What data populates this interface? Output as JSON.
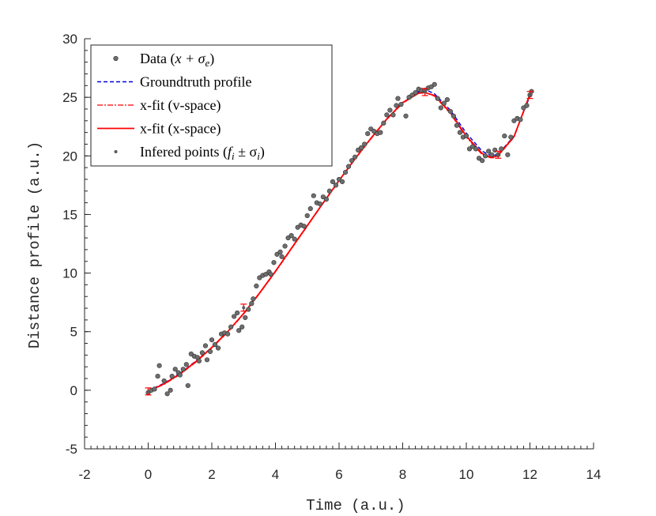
{
  "chart_data": {
    "type": "scatter",
    "title": "",
    "xlabel": "Time (a.u.)",
    "ylabel": "Distance profile (a.u.)",
    "xlim": [
      -2,
      14
    ],
    "ylim": [
      -5,
      30
    ],
    "xticks": [
      -2,
      0,
      2,
      4,
      6,
      8,
      10,
      12,
      14
    ],
    "yticks": [
      -5,
      0,
      5,
      10,
      15,
      20,
      25,
      30
    ],
    "xtick_labels": [
      "-2",
      "0",
      "2",
      "4",
      "6",
      "8",
      "10",
      "12",
      "14"
    ],
    "ytick_labels": [
      "-5",
      "0",
      "5",
      "10",
      "15",
      "20",
      "25",
      "30"
    ],
    "grid": false,
    "legend_position": "top-left",
    "legend": [
      {
        "key": "data",
        "text": "Data (",
        "math": "x + σ",
        "sub": "e",
        "suffix": ")"
      },
      {
        "key": "groundtruth",
        "text": "Groundtruth profile",
        "math": "",
        "sub": "",
        "suffix": ""
      },
      {
        "key": "vfit",
        "text": "x-fit (v-space)",
        "math": "",
        "sub": "",
        "suffix": ""
      },
      {
        "key": "xfit",
        "text": "x-fit (x-space)",
        "math": "",
        "sub": "",
        "suffix": ""
      },
      {
        "key": "inferred",
        "text": "Infered points (",
        "math": "f",
        "sub": "i",
        "suffix": " ± σ",
        "sub2": "i",
        "suffix2": ")"
      }
    ],
    "colors": {
      "data": "#6e6e6e",
      "groundtruth": "#0000dd",
      "vfit": "#ff0000",
      "xfit": "#ff0000",
      "inferred": "#5a5a5a",
      "axis": "#262626"
    },
    "series": [
      {
        "key": "data",
        "marker": "circle",
        "points": [
          [
            0.0,
            -0.2
          ],
          [
            0.1,
            0.0
          ],
          [
            0.2,
            0.1
          ],
          [
            0.3,
            1.2
          ],
          [
            0.35,
            2.1
          ],
          [
            0.5,
            0.8
          ],
          [
            0.6,
            -0.3
          ],
          [
            0.7,
            0.0
          ],
          [
            0.75,
            1.2
          ],
          [
            0.85,
            1.8
          ],
          [
            0.95,
            1.5
          ],
          [
            1.0,
            1.3
          ],
          [
            1.1,
            1.8
          ],
          [
            1.2,
            2.2
          ],
          [
            1.25,
            0.4
          ],
          [
            1.35,
            3.1
          ],
          [
            1.45,
            2.9
          ],
          [
            1.55,
            2.8
          ],
          [
            1.6,
            2.5
          ],
          [
            1.7,
            3.2
          ],
          [
            1.8,
            3.8
          ],
          [
            1.85,
            2.6
          ],
          [
            1.95,
            3.3
          ],
          [
            2.0,
            4.3
          ],
          [
            2.1,
            3.9
          ],
          [
            2.2,
            3.6
          ],
          [
            2.3,
            4.8
          ],
          [
            2.4,
            4.9
          ],
          [
            2.5,
            4.8
          ],
          [
            2.6,
            5.4
          ],
          [
            2.7,
            6.3
          ],
          [
            2.8,
            6.6
          ],
          [
            2.85,
            5.1
          ],
          [
            2.95,
            5.4
          ],
          [
            3.05,
            6.2
          ],
          [
            3.15,
            6.9
          ],
          [
            3.25,
            7.4
          ],
          [
            3.3,
            7.8
          ],
          [
            3.4,
            8.9
          ],
          [
            3.5,
            9.6
          ],
          [
            3.6,
            9.8
          ],
          [
            3.7,
            9.9
          ],
          [
            3.8,
            10.1
          ],
          [
            3.85,
            9.9
          ],
          [
            3.95,
            10.9
          ],
          [
            4.05,
            11.6
          ],
          [
            4.15,
            11.8
          ],
          [
            4.2,
            11.4
          ],
          [
            4.3,
            12.3
          ],
          [
            4.4,
            13.0
          ],
          [
            4.5,
            13.2
          ],
          [
            4.6,
            12.9
          ],
          [
            4.7,
            13.9
          ],
          [
            4.8,
            14.1
          ],
          [
            4.9,
            14.0
          ],
          [
            5.0,
            14.9
          ],
          [
            5.1,
            15.5
          ],
          [
            5.2,
            16.6
          ],
          [
            5.3,
            16.0
          ],
          [
            5.4,
            15.9
          ],
          [
            5.5,
            16.5
          ],
          [
            5.6,
            16.3
          ],
          [
            5.7,
            17.0
          ],
          [
            5.8,
            17.8
          ],
          [
            5.9,
            17.5
          ],
          [
            6.0,
            18.0
          ],
          [
            6.1,
            17.8
          ],
          [
            6.2,
            18.6
          ],
          [
            6.3,
            19.1
          ],
          [
            6.4,
            19.6
          ],
          [
            6.5,
            19.9
          ],
          [
            6.6,
            20.5
          ],
          [
            6.7,
            20.7
          ],
          [
            6.8,
            21.0
          ],
          [
            6.9,
            21.9
          ],
          [
            7.0,
            22.3
          ],
          [
            7.1,
            22.1
          ],
          [
            7.2,
            21.9
          ],
          [
            7.3,
            22.0
          ],
          [
            7.4,
            22.8
          ],
          [
            7.5,
            23.5
          ],
          [
            7.6,
            23.9
          ],
          [
            7.7,
            23.5
          ],
          [
            7.8,
            24.3
          ],
          [
            7.85,
            24.9
          ],
          [
            7.95,
            24.4
          ],
          [
            8.1,
            23.4
          ],
          [
            8.2,
            25.0
          ],
          [
            8.3,
            25.2
          ],
          [
            8.4,
            25.4
          ],
          [
            8.5,
            25.7
          ],
          [
            8.6,
            25.6
          ],
          [
            8.7,
            25.6
          ],
          [
            8.8,
            25.8
          ],
          [
            8.9,
            25.9
          ],
          [
            9.0,
            26.1
          ],
          [
            9.1,
            24.9
          ],
          [
            9.2,
            24.1
          ],
          [
            9.3,
            24.5
          ],
          [
            9.4,
            24.8
          ],
          [
            9.5,
            23.8
          ],
          [
            9.6,
            23.4
          ],
          [
            9.7,
            22.6
          ],
          [
            9.8,
            22.0
          ],
          [
            9.9,
            21.6
          ],
          [
            10.0,
            21.7
          ],
          [
            10.1,
            20.6
          ],
          [
            10.2,
            20.8
          ],
          [
            10.3,
            20.6
          ],
          [
            10.4,
            19.8
          ],
          [
            10.5,
            19.6
          ],
          [
            10.6,
            20.0
          ],
          [
            10.7,
            20.4
          ],
          [
            10.8,
            20.1
          ],
          [
            10.9,
            20.5
          ],
          [
            11.0,
            20.1
          ],
          [
            11.1,
            20.6
          ],
          [
            11.2,
            21.7
          ],
          [
            11.3,
            20.1
          ],
          [
            11.4,
            21.6
          ],
          [
            11.5,
            23.0
          ],
          [
            11.6,
            23.2
          ],
          [
            11.7,
            23.1
          ],
          [
            11.8,
            24.1
          ],
          [
            11.9,
            24.3
          ],
          [
            12.0,
            25.2
          ],
          [
            12.05,
            25.5
          ]
        ]
      },
      {
        "key": "groundtruth",
        "line": "dashed",
        "points": [
          [
            0,
            -0.05
          ],
          [
            0.5,
            0.6
          ],
          [
            1,
            1.45
          ],
          [
            1.5,
            2.5
          ],
          [
            2,
            3.65
          ],
          [
            2.5,
            5.0
          ],
          [
            3,
            6.55
          ],
          [
            3.5,
            8.3
          ],
          [
            4,
            10.15
          ],
          [
            4.5,
            12.1
          ],
          [
            5,
            14.05
          ],
          [
            5.5,
            16.0
          ],
          [
            6,
            17.9
          ],
          [
            6.5,
            19.75
          ],
          [
            7,
            21.5
          ],
          [
            7.5,
            23.15
          ],
          [
            8,
            24.55
          ],
          [
            8.5,
            25.45
          ],
          [
            8.8,
            25.55
          ],
          [
            9,
            25.3
          ],
          [
            9.5,
            23.9
          ],
          [
            10,
            21.95
          ],
          [
            10.5,
            20.4
          ],
          [
            10.8,
            20.0
          ],
          [
            11,
            20.15
          ],
          [
            11.5,
            21.7
          ],
          [
            12,
            25.1
          ]
        ]
      },
      {
        "key": "vfit",
        "line": "dashdot",
        "points": [
          [
            0,
            -0.1
          ],
          [
            0.5,
            0.5
          ],
          [
            1,
            1.35
          ],
          [
            1.5,
            2.4
          ],
          [
            2,
            3.6
          ],
          [
            2.5,
            4.95
          ],
          [
            3,
            6.5
          ],
          [
            3.5,
            8.25
          ],
          [
            4,
            10.1
          ],
          [
            4.5,
            12.05
          ],
          [
            5,
            14.0
          ],
          [
            5.5,
            15.95
          ],
          [
            6,
            17.85
          ],
          [
            6.5,
            19.7
          ],
          [
            7,
            21.45
          ],
          [
            7.5,
            23.1
          ],
          [
            8,
            24.5
          ],
          [
            8.5,
            25.35
          ],
          [
            8.7,
            25.4
          ],
          [
            9,
            25.1
          ],
          [
            9.5,
            23.6
          ],
          [
            10,
            21.6
          ],
          [
            10.5,
            20.1
          ],
          [
            10.8,
            19.8
          ],
          [
            11,
            20.0
          ],
          [
            11.5,
            21.6
          ],
          [
            12,
            25.2
          ]
        ]
      },
      {
        "key": "xfit",
        "line": "solid",
        "points": [
          [
            0,
            -0.1
          ],
          [
            0.5,
            0.55
          ],
          [
            1,
            1.4
          ],
          [
            1.5,
            2.45
          ],
          [
            2,
            3.65
          ],
          [
            2.5,
            5.0
          ],
          [
            3,
            6.55
          ],
          [
            3.5,
            8.3
          ],
          [
            4,
            10.15
          ],
          [
            4.5,
            12.1
          ],
          [
            5,
            14.05
          ],
          [
            5.5,
            16.0
          ],
          [
            6,
            17.9
          ],
          [
            6.5,
            19.75
          ],
          [
            7,
            21.5
          ],
          [
            7.5,
            23.15
          ],
          [
            8,
            24.55
          ],
          [
            8.5,
            25.35
          ],
          [
            8.7,
            25.4
          ],
          [
            9,
            25.15
          ],
          [
            9.5,
            23.7
          ],
          [
            10,
            21.7
          ],
          [
            10.5,
            20.2
          ],
          [
            10.8,
            19.85
          ],
          [
            11,
            20.05
          ],
          [
            11.5,
            21.65
          ],
          [
            12,
            25.25
          ]
        ]
      },
      {
        "key": "inferred",
        "marker": "errorbar",
        "points": [
          [
            0,
            -0.1,
            0.3
          ],
          [
            3.0,
            7.05,
            0.3
          ],
          [
            8.7,
            25.45,
            0.3
          ],
          [
            11.0,
            20.1,
            0.3
          ],
          [
            12.0,
            25.2,
            0.3
          ]
        ]
      }
    ]
  }
}
